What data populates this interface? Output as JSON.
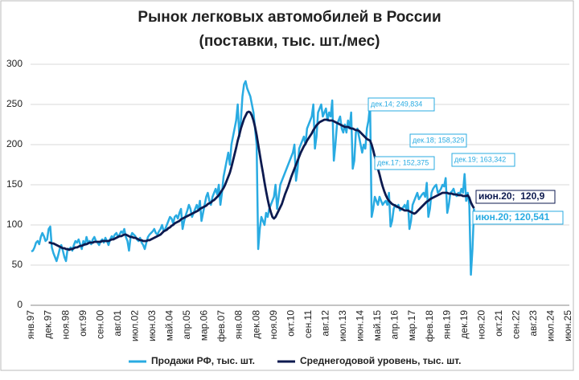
{
  "chart_data": {
    "type": "line",
    "title": "Рынок легковых автомобилей в России",
    "subtitle": "(поставки, тыс. шт./мес)",
    "categories": [
      "янв.97",
      null,
      null,
      null,
      null,
      null,
      null,
      null,
      null,
      null,
      null,
      "дек.97",
      null,
      null,
      null,
      null,
      null,
      null,
      null,
      null,
      null,
      null,
      "ноя.98",
      null,
      null,
      null,
      null,
      null,
      null,
      null,
      null,
      null,
      null,
      "окт.99",
      null,
      null,
      null,
      null,
      null,
      null,
      null,
      null,
      null,
      null,
      "сен.00",
      null,
      null,
      null,
      null,
      null,
      null,
      null,
      null,
      null,
      null,
      "авг.01",
      null,
      null,
      null,
      null,
      null,
      null,
      null,
      null,
      null,
      null,
      "июл.02",
      null,
      null,
      null,
      null,
      null,
      null,
      null,
      null,
      null,
      null,
      "июн.03",
      null,
      null,
      null,
      null,
      null,
      null,
      null,
      null,
      null,
      null,
      "май.04",
      null,
      null,
      null,
      null,
      null,
      null,
      null,
      null,
      null,
      null,
      "апр.05",
      null,
      null,
      null,
      null,
      null,
      null,
      null,
      null,
      null,
      null,
      "мар.06",
      null,
      null,
      null,
      null,
      null,
      null,
      null,
      null,
      null,
      null,
      "фев.07",
      null,
      null,
      null,
      null,
      null,
      null,
      null,
      null,
      null,
      null,
      "янв.08",
      null,
      null,
      null,
      null,
      null,
      null,
      null,
      null,
      null,
      null,
      "дек.08",
      null,
      null,
      null,
      null,
      null,
      null,
      null,
      null,
      null,
      null,
      "ноя.09",
      null,
      null,
      null,
      null,
      null,
      null,
      null,
      null,
      null,
      null,
      "окт.10",
      null,
      null,
      null,
      null,
      null,
      null,
      null,
      null,
      null,
      null,
      "сен.11",
      null,
      null,
      null,
      null,
      null,
      null,
      null,
      null,
      null,
      null,
      "авг.12",
      null,
      null,
      null,
      null,
      null,
      null,
      null,
      null,
      null,
      null,
      "июл.13",
      null,
      null,
      null,
      null,
      null,
      null,
      null,
      null,
      null,
      null,
      "июн.14",
      null,
      null,
      null,
      null,
      null,
      null,
      null,
      null,
      null,
      null,
      "май.15",
      null,
      null,
      null,
      null,
      null,
      null,
      null,
      null,
      null,
      null,
      "апр.16",
      null,
      null,
      null,
      null,
      null,
      null,
      null,
      null,
      null,
      null,
      "мар.17",
      null,
      null,
      null,
      null,
      null,
      null,
      null,
      null,
      null,
      null,
      "фев.18",
      null,
      null,
      null,
      null,
      null,
      null,
      null,
      null,
      null,
      null,
      "янв.19",
      null,
      null,
      null,
      null,
      null,
      null,
      null,
      null,
      null,
      null,
      "дек.19",
      null,
      null,
      null,
      null,
      null,
      null,
      null,
      null,
      null,
      null,
      "ноя.20",
      null,
      null,
      null,
      null,
      null,
      null,
      null,
      null,
      null,
      null,
      "окт.21",
      null,
      null,
      null,
      null,
      null,
      null,
      null,
      null,
      null,
      null,
      "сен.22",
      null,
      null,
      null,
      null,
      null,
      null,
      null,
      null,
      null,
      null,
      "авг.23",
      null,
      null,
      null,
      null,
      null,
      null,
      null,
      null,
      null,
      null,
      "июл.24",
      null,
      null,
      null,
      null,
      null,
      null,
      null,
      null,
      null,
      null,
      "июн.25"
    ],
    "series": [
      {
        "name": "Продажи РФ, тыс. шт.",
        "color": "#29abe2",
        "values": [
          67,
          68,
          72,
          78,
          80,
          76,
          85,
          90,
          86,
          80,
          82,
          95,
          98,
          72,
          65,
          60,
          55,
          62,
          70,
          75,
          68,
          60,
          55,
          70,
          70,
          72,
          68,
          75,
          80,
          78,
          82,
          76,
          70,
          80,
          75,
          85,
          78,
          80,
          76,
          82,
          85,
          80,
          78,
          75,
          80,
          82,
          78,
          84,
          80,
          75,
          82,
          86,
          84,
          88,
          90,
          85,
          88,
          92,
          90,
          95,
          85,
          80,
          68,
          85,
          90,
          88,
          86,
          82,
          80,
          84,
          78,
          75,
          70,
          78,
          85,
          88,
          90,
          92,
          95,
          90,
          88,
          92,
          95,
          100,
          92,
          95,
          100,
          105,
          110,
          108,
          102,
          110,
          112,
          108,
          115,
          120,
          95,
          105,
          112,
          118,
          125,
          120,
          110,
          115,
          120,
          125,
          118,
          130,
          105,
          115,
          125,
          135,
          140,
          130,
          125,
          135,
          140,
          145,
          138,
          150,
          125,
          140,
          160,
          170,
          180,
          190,
          175,
          200,
          210,
          220,
          230,
          250,
          210,
          230,
          260,
          275,
          279,
          270,
          265,
          260,
          250,
          240,
          220,
          200,
          70,
          95,
          110,
          105,
          100,
          115,
          110,
          120,
          125,
          130,
          135,
          150,
          120,
          135,
          150,
          155,
          160,
          165,
          170,
          175,
          180,
          185,
          190,
          200,
          155,
          170,
          195,
          200,
          205,
          210,
          200,
          220,
          225,
          230,
          235,
          250,
          195,
          210,
          240,
          245,
          250,
          235,
          240,
          245,
          230,
          240,
          235,
          255,
          180,
          200,
          225,
          230,
          235,
          220,
          215,
          225,
          215,
          230,
          220,
          240,
          170,
          180,
          215,
          220,
          210,
          200,
          190,
          200,
          195,
          220,
          230,
          249.834,
          110,
          120,
          135,
          130,
          125,
          135,
          130,
          125,
          128,
          130,
          125,
          140,
          98,
          105,
          120,
          125,
          122,
          125,
          118,
          120,
          122,
          125,
          120,
          130,
          95,
          105,
          125,
          130,
          135,
          140,
          132,
          135,
          138,
          140,
          135,
          152.375,
          110,
          120,
          140,
          145,
          148,
          150,
          140,
          142,
          145,
          150,
          148,
          158.329,
          115,
          125,
          140,
          142,
          145,
          138,
          136,
          140,
          138,
          145,
          140,
          163.342,
          130,
          140,
          125,
          38,
          70,
          120.541,
          null,
          null,
          null,
          null,
          null,
          null,
          null,
          null,
          null,
          null,
          null,
          null,
          null,
          null,
          null,
          null,
          null,
          null,
          null,
          null,
          null,
          null,
          null,
          null,
          null,
          null,
          null,
          null,
          null,
          null,
          null,
          null,
          null,
          null,
          null,
          null,
          null,
          null,
          null,
          null,
          null,
          null,
          null,
          null,
          null,
          null,
          null,
          null,
          null,
          null,
          null,
          null,
          null,
          null,
          null,
          null,
          null,
          null,
          null,
          null
        ]
      },
      {
        "name": "Среднегодовой уровень, тыс. шт.",
        "color": "#0d1a4f",
        "values": [
          null,
          null,
          null,
          null,
          null,
          null,
          null,
          null,
          null,
          null,
          null,
          78,
          78,
          77,
          77,
          76,
          75,
          74,
          73,
          72,
          71,
          71,
          70,
          70,
          69,
          70,
          70,
          71,
          72,
          72,
          73,
          74,
          74,
          75,
          76,
          76,
          77,
          78,
          78,
          78,
          79,
          79,
          79,
          79,
          79,
          80,
          80,
          80,
          80,
          80,
          81,
          82,
          82,
          83,
          84,
          85,
          86,
          86,
          87,
          88,
          88,
          87,
          86,
          85,
          85,
          84,
          84,
          83,
          82,
          81,
          81,
          80,
          80,
          80,
          81,
          81,
          82,
          83,
          84,
          85,
          86,
          87,
          88,
          90,
          92,
          93,
          94,
          96,
          97,
          99,
          100,
          102,
          103,
          104,
          105,
          107,
          108,
          109,
          110,
          111,
          112,
          113,
          114,
          115,
          116,
          117,
          118,
          120,
          121,
          122,
          123,
          124,
          126,
          127,
          128,
          130,
          131,
          133,
          135,
          137,
          140,
          143,
          146,
          150,
          155,
          160,
          165,
          172,
          180,
          188,
          196,
          205,
          212,
          220,
          226,
          232,
          236,
          240,
          241,
          240,
          236,
          230,
          222,
          212,
          200,
          188,
          176,
          165,
          153,
          142,
          132,
          123,
          116,
          110,
          108,
          110,
          114,
          118,
          122,
          126,
          132,
          138,
          143,
          148,
          154,
          160,
          165,
          170,
          175,
          180,
          185,
          190,
          194,
          198,
          201,
          205,
          208,
          211,
          214,
          218,
          221,
          224,
          226,
          228,
          229,
          230,
          231,
          231,
          231,
          230,
          230,
          230,
          229,
          228,
          227,
          226,
          225,
          224,
          223,
          222,
          222,
          222,
          221,
          220,
          220,
          219,
          218,
          218,
          217,
          215,
          213,
          211,
          209,
          207,
          206,
          205,
          200,
          193,
          185,
          178,
          170,
          163,
          155,
          148,
          142,
          137,
          133,
          130,
          128,
          126,
          125,
          124,
          123,
          122,
          121,
          120,
          119,
          118,
          118,
          118,
          117,
          116,
          115,
          114,
          115,
          117,
          119,
          121,
          123,
          125,
          127,
          129,
          130,
          132,
          133,
          134,
          135,
          136,
          137,
          138,
          139,
          140,
          140,
          140,
          140,
          139,
          139,
          139,
          138,
          138,
          138,
          137,
          137,
          137,
          136,
          136,
          136,
          137,
          134,
          128,
          124,
          120.9,
          null,
          null,
          null,
          null,
          null,
          null,
          null,
          null,
          null,
          null,
          null,
          null,
          null,
          null,
          null,
          null,
          null,
          null,
          null,
          null,
          null,
          null,
          null,
          null,
          null,
          null,
          null,
          null,
          null,
          null,
          null,
          null,
          null,
          null,
          null,
          null,
          null,
          null,
          null,
          null,
          null,
          null,
          null,
          null,
          null,
          null,
          null,
          null,
          null,
          null,
          null,
          null,
          null,
          null,
          null,
          null,
          null,
          null,
          null,
          null
        ]
      }
    ],
    "annotations": [
      "дек.14; 249,834",
      "дек.17; 152,375",
      "дек.18; 158,329",
      "дек.19; 163,342",
      "июн.20;  120,9",
      "июн.20; 120,541"
    ],
    "ylim": [
      0,
      300
    ],
    "yticks": [
      0,
      50,
      100,
      150,
      200,
      250,
      300
    ],
    "grid": true,
    "legend": "bottom"
  }
}
